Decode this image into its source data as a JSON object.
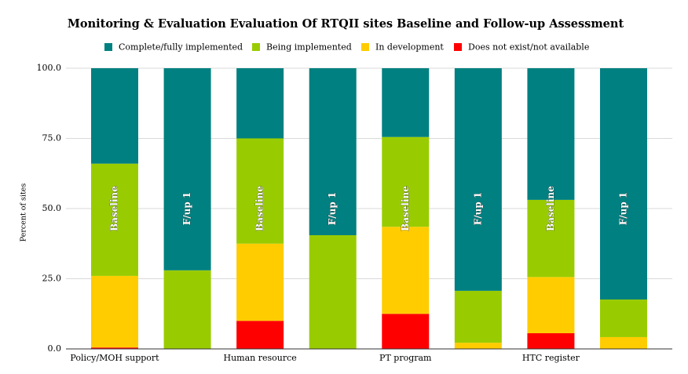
{
  "chart_data": {
    "type": "stacked_bar",
    "title": "Monitoring & Evaluation Evaluation Of RTQII sites Baseline and Follow-up Assessment",
    "y_label": "Percent of sites",
    "categories": [
      "Policy/MOH support",
      null,
      "Human resource",
      null,
      "PT program",
      null,
      "HTC register",
      null
    ],
    "bar_labels": [
      "Baseline",
      "F/up 1",
      "Baseline",
      "F/up 1",
      "Baseline",
      "F/up 1",
      "Baseline",
      "F/up 1"
    ],
    "series": [
      {
        "name": "Complete/fully implemented",
        "color": "#008080",
        "values": [
          34,
          72,
          25,
          59.5,
          24.5,
          79.3,
          46.9,
          82.4
        ]
      },
      {
        "name": "Being implemented",
        "color": "#99cc00",
        "values": [
          40,
          28,
          37.5,
          40.5,
          32,
          18.5,
          27.5,
          13.4
        ]
      },
      {
        "name": "In development",
        "color": "#ffcc00",
        "values": [
          25.5,
          0,
          27.5,
          0,
          31,
          2.2,
          20,
          4.2
        ]
      },
      {
        "name": "Does not exist/not available",
        "color": "#ff0000",
        "values": [
          0.5,
          0,
          10,
          0,
          12.5,
          0,
          5.6,
          0
        ]
      }
    ],
    "ylim": [
      0,
      100
    ],
    "yticks": [
      {
        "value": 0,
        "label": "0.0"
      },
      {
        "value": 25,
        "label": "25.0"
      },
      {
        "value": 50,
        "label": "50.0"
      },
      {
        "value": 75,
        "label": "75.0"
      },
      {
        "value": 100,
        "label": "100.0"
      }
    ],
    "grid": true,
    "legend": "top"
  }
}
